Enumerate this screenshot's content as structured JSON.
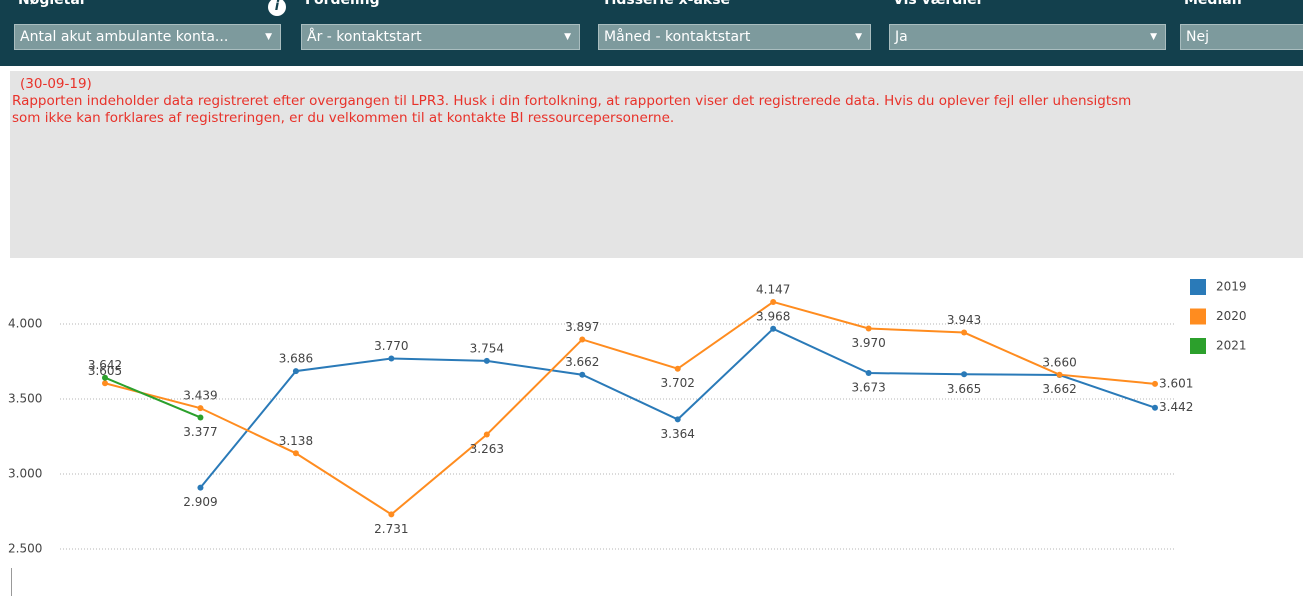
{
  "filters": [
    {
      "label": "Nøgletal",
      "value": "Antal akut ambulante konta..."
    },
    {
      "label": "Fordeling",
      "value": "År - kontaktstart"
    },
    {
      "label": "Tidsserie x-akse",
      "value": "Måned - kontaktstart"
    },
    {
      "label": "Vis værdier",
      "value": "Ja"
    },
    {
      "label": "Median",
      "value": "Nej"
    }
  ],
  "message": {
    "date": "(30-09-19)",
    "lines": [
      "Rapporten indeholder data registreret efter overgangen til LPR3. Husk i din fortolkning, at rapporten viser det registrerede data. Hvis du oplever fejl eller uhensigtsm",
      "som ikke kan forklares af registreringen, er du velkommen til at kontakte BI ressourcepersonerne."
    ]
  },
  "chart_data": {
    "type": "line",
    "categories": [
      null,
      null,
      null,
      null,
      null,
      null,
      null,
      null,
      null,
      null,
      null,
      null
    ],
    "series": [
      {
        "name": "2019",
        "color": "#2a7ab8",
        "values": [
          null,
          2909,
          3686,
          3770,
          3754,
          3662,
          3364,
          3968,
          3673,
          3665,
          3660,
          3442
        ],
        "value_labels": [
          null,
          "2.909",
          "3.686",
          "3.770",
          "3.754",
          "3.662",
          "3.364",
          "3.968",
          "3.673",
          "3.665",
          "3.660",
          "3.442"
        ]
      },
      {
        "name": "2020",
        "color": "#ff8c1f",
        "values": [
          3605,
          3439,
          3138,
          2731,
          3263,
          3897,
          3702,
          4147,
          3970,
          3943,
          3662,
          3601
        ],
        "value_labels": [
          "3.605",
          "3.439",
          "3.138",
          "2.731",
          "3.263",
          "3.897",
          "3.702",
          "4.147",
          "3.970",
          "3.943",
          "3.662",
          "3.601"
        ]
      },
      {
        "name": "2021",
        "color": "#2ca02c",
        "values": [
          3642,
          3377,
          null,
          null,
          null,
          null,
          null,
          null,
          null,
          null,
          null,
          null
        ],
        "value_labels": [
          "3.642",
          "3.377",
          null,
          null,
          null,
          null,
          null,
          null,
          null,
          null,
          null,
          null
        ]
      }
    ],
    "ylim": [
      2500,
      4300
    ],
    "yticks": [
      {
        "value": 2500,
        "label": "2.500"
      },
      {
        "value": 3000,
        "label": "3.000"
      },
      {
        "value": 3500,
        "label": "3.500"
      },
      {
        "value": 4000,
        "label": "4.000"
      }
    ],
    "grid": true,
    "legend": "right"
  }
}
